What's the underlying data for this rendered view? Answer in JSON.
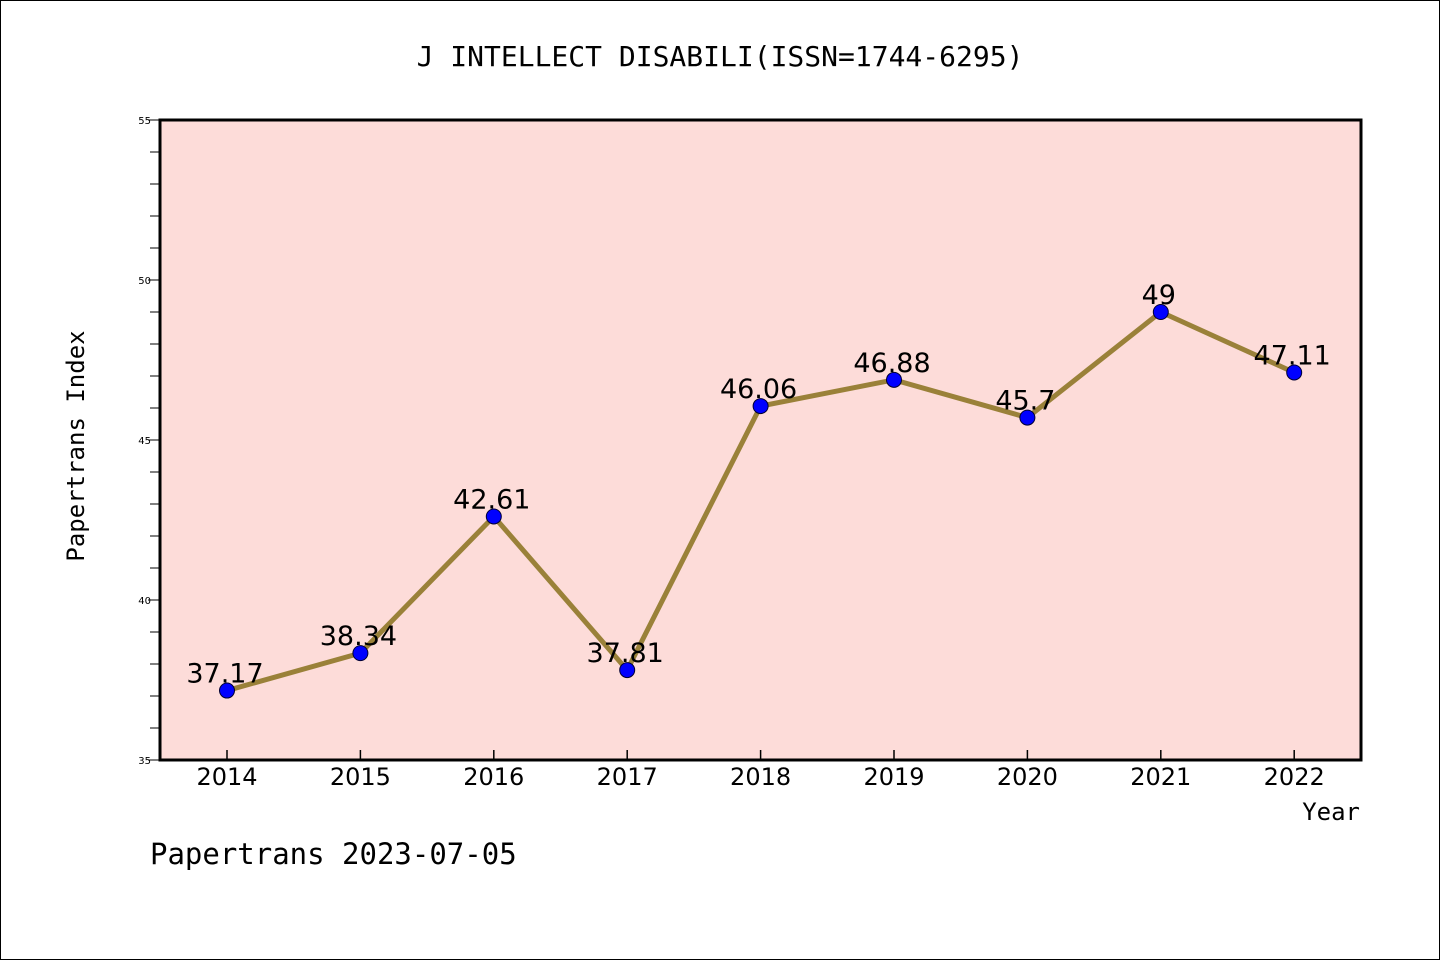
{
  "chart_data": {
    "type": "line",
    "title": "J INTELLECT DISABILI(ISSN=1744-6295)",
    "xlabel": "Year",
    "ylabel": "Papertrans Index",
    "categories": [
      "2014",
      "2015",
      "2016",
      "2017",
      "2018",
      "2019",
      "2020",
      "2021",
      "2022"
    ],
    "series": [
      {
        "values": [
          37.17,
          38.34,
          42.61,
          37.81,
          46.06,
          46.88,
          45.7,
          49,
          47.11
        ],
        "labels": [
          "37.17",
          "38.34",
          "42.61",
          "37.81",
          "46.06",
          "46.88",
          "45.7",
          "49",
          "47.11"
        ]
      }
    ],
    "ylim": [
      35,
      55
    ],
    "yticks": [
      "35",
      "40",
      "45",
      "50",
      "55"
    ],
    "grid": false,
    "colors": {
      "plot_background": "#fddcd9",
      "line": "#9a8139",
      "marker": "#0000ff"
    }
  },
  "footer": {
    "text": "Papertrans 2023-07-05"
  }
}
